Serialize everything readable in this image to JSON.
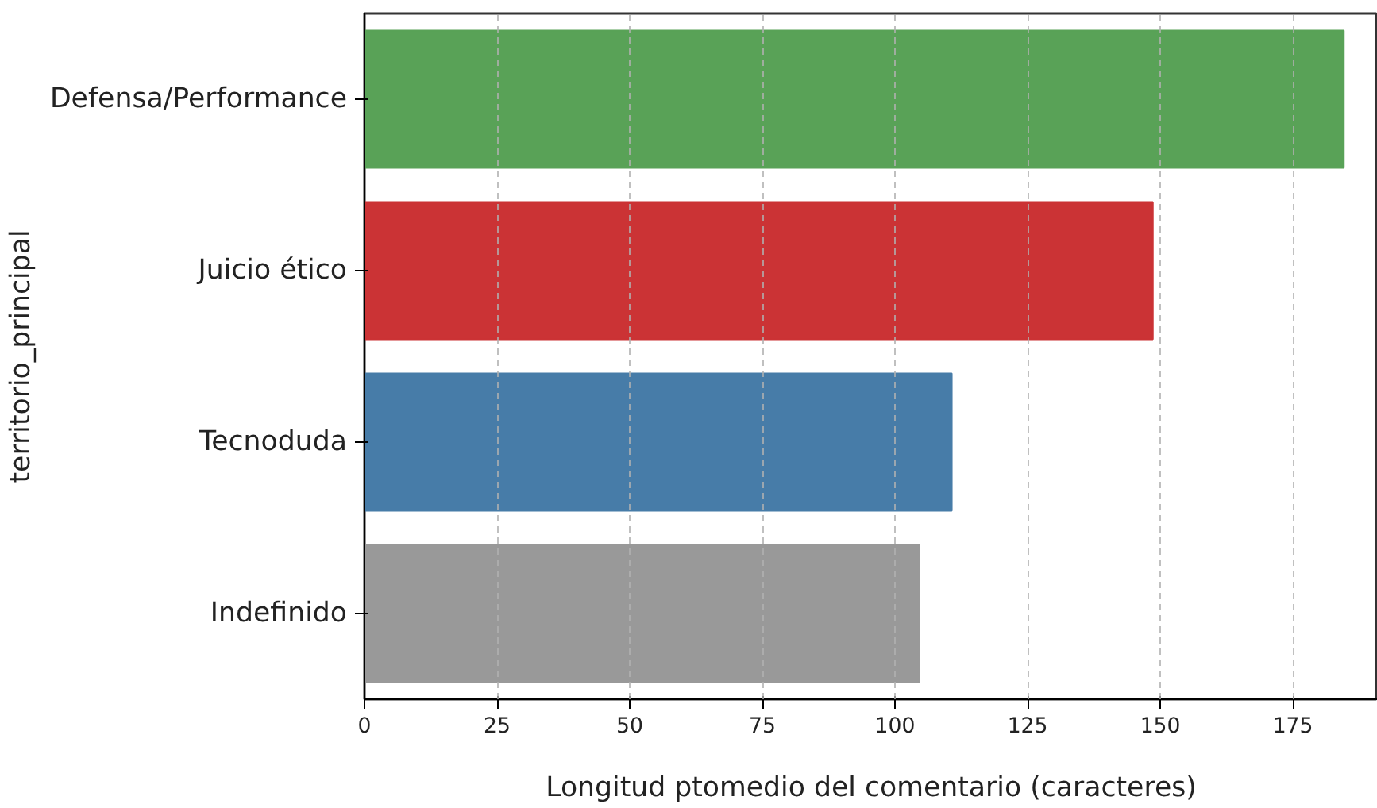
{
  "chart_data": {
    "type": "bar",
    "orientation": "horizontal",
    "xlabel": "Longitud ptomedio del comentario (caracteres)",
    "ylabel": "territorio_principal",
    "categories": [
      "Defensa/Performance",
      "Juicio ético",
      "Tecnoduda",
      "Indefinido"
    ],
    "values": [
      184.6,
      148.6,
      110.7,
      104.6
    ],
    "colors": [
      "#59a257",
      "#cb3335",
      "#477ca8",
      "#999999"
    ],
    "xlim": [
      0,
      191
    ],
    "xticks": [
      0,
      25,
      50,
      75,
      100,
      125,
      150,
      175
    ],
    "grid": "x"
  }
}
